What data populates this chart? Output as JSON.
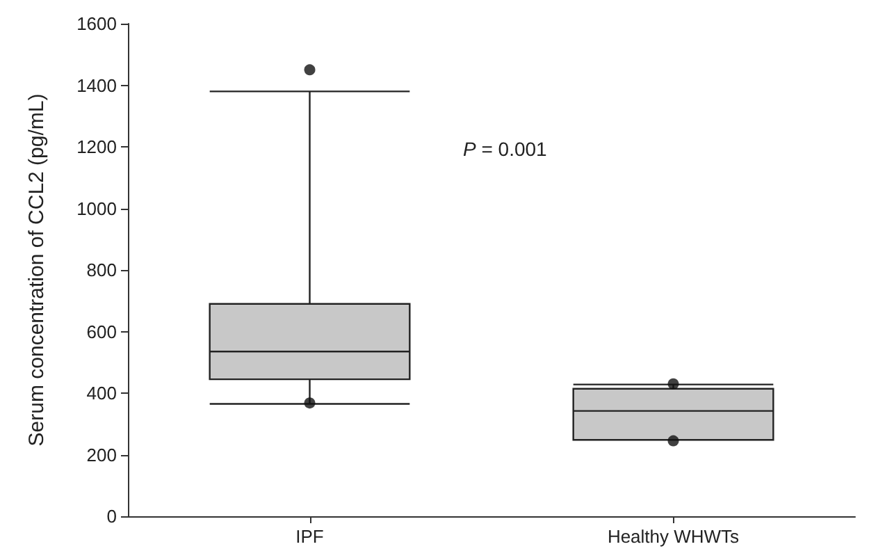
{
  "chart_data": {
    "type": "box",
    "categories": [
      "IPF",
      "Healthy WHWTs"
    ],
    "ylabel": "Serum concentration of CCL2 (pg/mL)",
    "boxes": [
      {
        "low": 365,
        "q1": 445,
        "median": 535,
        "q3": 690,
        "high": 1380,
        "outliers": [
          1450,
          368
        ]
      },
      {
        "low": 248,
        "q1": 248,
        "median": 342,
        "q3": 414,
        "high": 428,
        "outliers": [
          430,
          245
        ]
      }
    ],
    "color": "#c8c8c8",
    "ylim": [
      0,
      1600
    ],
    "yticks": [
      0,
      200,
      400,
      600,
      800,
      1000,
      1200,
      1400,
      1600
    ],
    "annotations": [
      "P = 0.001"
    ],
    "grid": false
  }
}
